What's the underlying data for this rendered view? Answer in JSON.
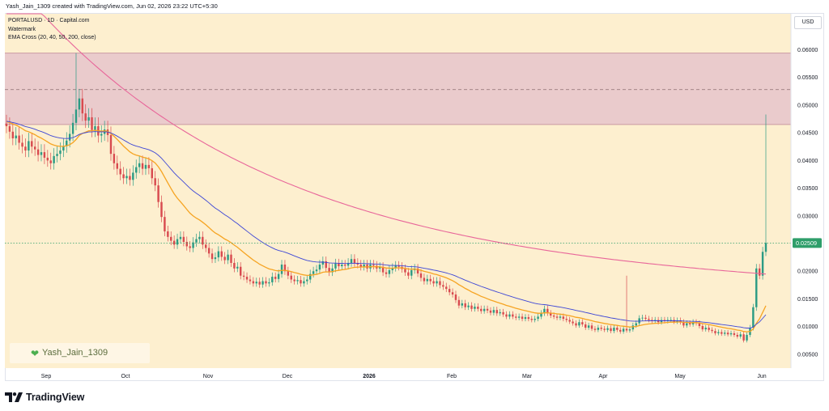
{
  "header": {
    "credit": "Yash_Jain_1309 created with TradingView.com, Jun 02, 2026 23:22 UTC+5:30"
  },
  "legend": {
    "symbol": "PORTALUSD · 1D · Capital.com",
    "watermark": "Watermark",
    "indicator": "EMA Cross (20, 40, 50, 200, close)"
  },
  "currency": "USD",
  "watermark_text": "Yash_Jain_1309",
  "logo_text": "TradingView",
  "colors": {
    "background": "#fdefcf",
    "zone": "#e8c8cc",
    "ema_fast": "#f6a422",
    "ema_mid": "#3d46d6",
    "ema_long": "#e8669a",
    "up": "#2b9b84",
    "down": "#d84a4f",
    "last_price_badge": "#2e9e6a"
  },
  "chart_data": {
    "type": "candlestick",
    "y_axis": {
      "ticks": [
        "0.06000",
        "0.05500",
        "0.05000",
        "0.04500",
        "0.04000",
        "0.03500",
        "0.03000",
        "0.02000",
        "0.01500",
        "0.01000",
        "0.00500"
      ],
      "range": [
        0.0025,
        0.0665
      ]
    },
    "x_axis": {
      "labels": [
        "Sep",
        "Oct",
        "Nov",
        "Dec",
        "2026",
        "Feb",
        "Mar",
        "Apr",
        "May",
        "Jun"
      ]
    },
    "last_price": "0.02509",
    "resistance_zone": {
      "low": 0.0465,
      "high": 0.0594,
      "mid": 0.0528
    },
    "closes": [
      0.0462,
      0.0452,
      0.044,
      0.0445,
      0.0432,
      0.0425,
      0.0418,
      0.0435,
      0.0425,
      0.042,
      0.041,
      0.0415,
      0.0405,
      0.04,
      0.0395,
      0.0408,
      0.0412,
      0.0418,
      0.0426,
      0.0436,
      0.0448,
      0.0468,
      0.0492,
      0.0512,
      0.0485,
      0.0472,
      0.0478,
      0.0455,
      0.0462,
      0.0445,
      0.0448,
      0.0456,
      0.0446,
      0.0412,
      0.0395,
      0.0385,
      0.0375,
      0.0368,
      0.0372,
      0.0365,
      0.0378,
      0.0388,
      0.0395,
      0.0385,
      0.0392,
      0.0386,
      0.0368,
      0.0355,
      0.0325,
      0.0298,
      0.0272,
      0.0262,
      0.0255,
      0.0248,
      0.0258,
      0.0262,
      0.0253,
      0.0245,
      0.0242,
      0.0252,
      0.0258,
      0.0262,
      0.0248,
      0.0242,
      0.0232,
      0.0222,
      0.0225,
      0.0236,
      0.0226,
      0.022,
      0.023,
      0.0215,
      0.0205,
      0.0208,
      0.0192,
      0.019,
      0.0185,
      0.0182,
      0.0178,
      0.0181,
      0.0176,
      0.0182,
      0.0178,
      0.018,
      0.019,
      0.0186,
      0.0195,
      0.0212,
      0.02,
      0.0192,
      0.0185,
      0.0182,
      0.0184,
      0.0178,
      0.0182,
      0.0185,
      0.0195,
      0.02,
      0.0203,
      0.0212,
      0.0218,
      0.0206,
      0.0198,
      0.0205,
      0.0214,
      0.0209,
      0.0212,
      0.021,
      0.0215,
      0.0222,
      0.0215,
      0.0212,
      0.0208,
      0.0212,
      0.0205,
      0.0212,
      0.021,
      0.0205,
      0.0208,
      0.0198,
      0.0195,
      0.0202,
      0.0206,
      0.021,
      0.0208,
      0.0204,
      0.0198,
      0.0192,
      0.0202,
      0.0205,
      0.0196,
      0.0188,
      0.0182,
      0.0186,
      0.0182,
      0.0178,
      0.0182,
      0.0175,
      0.0172,
      0.0168,
      0.0162,
      0.0158,
      0.0148,
      0.0138,
      0.0142,
      0.0135,
      0.0138,
      0.0132,
      0.0136,
      0.0132,
      0.0128,
      0.0132,
      0.0129,
      0.0125,
      0.013,
      0.0124,
      0.0126,
      0.0122,
      0.0118,
      0.0122,
      0.0118,
      0.0116,
      0.0118,
      0.0114,
      0.0117,
      0.0114,
      0.0112,
      0.0114,
      0.0118,
      0.0124,
      0.0132,
      0.0124,
      0.012,
      0.0118,
      0.0116,
      0.0118,
      0.0114,
      0.0112,
      0.0109,
      0.0106,
      0.0102,
      0.0108,
      0.0104,
      0.0098,
      0.0102,
      0.0096,
      0.0094,
      0.0098,
      0.0096,
      0.0094,
      0.0097,
      0.0092,
      0.0098,
      0.0094,
      0.0091,
      0.0096,
      0.0093,
      0.0095,
      0.0102,
      0.0106,
      0.0115,
      0.0116,
      0.0114,
      0.0112,
      0.011,
      0.0112,
      0.0108,
      0.0112,
      0.011,
      0.0112,
      0.0112,
      0.0109,
      0.0111,
      0.0108,
      0.0102,
      0.0106,
      0.0104,
      0.0108,
      0.0106,
      0.0101,
      0.0095,
      0.0098,
      0.0094,
      0.0092,
      0.0088,
      0.009,
      0.0087,
      0.0089,
      0.0086,
      0.0088,
      0.0085,
      0.0082,
      0.0086,
      0.0075,
      0.0085,
      0.0098,
      0.0135,
      0.0205,
      0.0192,
      0.0235,
      0.0251
    ]
  }
}
